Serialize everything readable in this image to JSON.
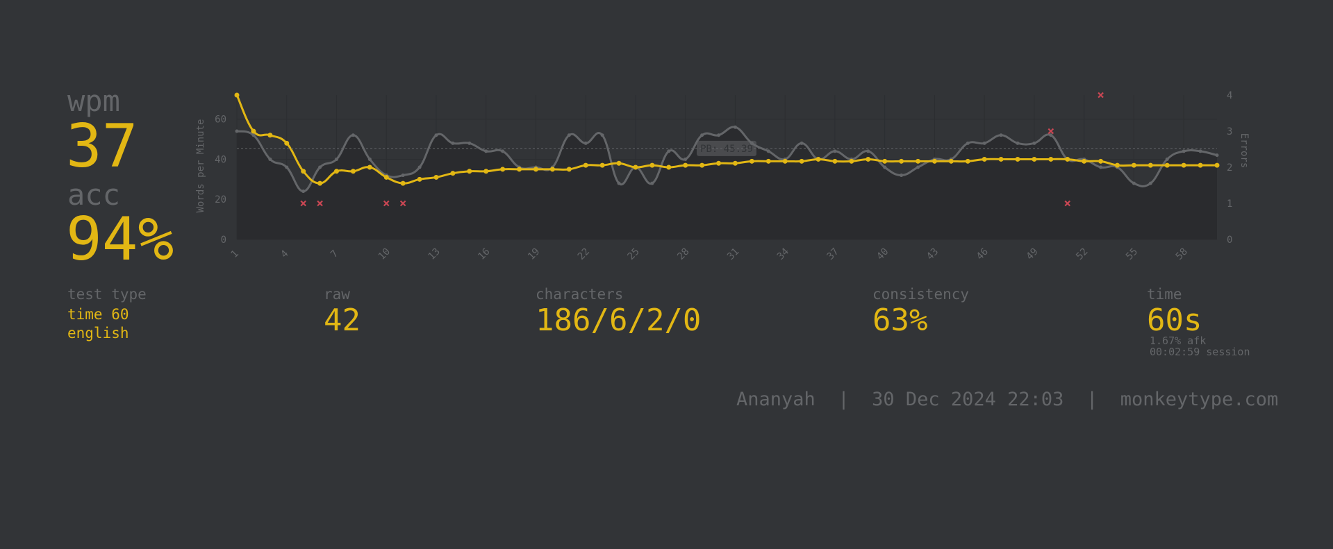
{
  "stats": {
    "wpm_label": "wpm",
    "wpm_value": "37",
    "acc_label": "acc",
    "acc_value": "94%"
  },
  "details": {
    "test_type_label": "test type",
    "test_type_mode": "time 60",
    "test_type_language": "english",
    "raw_label": "raw",
    "raw_value": "42",
    "characters_label": "characters",
    "characters_value": "186/6/2/0",
    "consistency_label": "consistency",
    "consistency_value": "63%",
    "time_label": "time",
    "time_value": "60s",
    "afk": "1.67% afk",
    "session": "00:02:59 session"
  },
  "footer": {
    "user": "Ananyah",
    "date": "30 Dec 2024 22:03",
    "site": "monkeytype.com",
    "separator": "|"
  },
  "colors": {
    "background": "#323437",
    "main": "#e2b714",
    "sub": "#646669",
    "raw_line": "#646669",
    "error": "#ca4754"
  },
  "chart_data": {
    "type": "line",
    "ylabel": "Words per Minute",
    "y2label": "Errors",
    "ylim": [
      0,
      72
    ],
    "y2lim": [
      0,
      4
    ],
    "yticks": [
      0,
      20,
      40,
      60
    ],
    "y2ticks": [
      0,
      1,
      2,
      3,
      4
    ],
    "xticks": [
      1,
      4,
      7,
      10,
      13,
      16,
      19,
      22,
      25,
      28,
      31,
      34,
      37,
      40,
      43,
      46,
      49,
      52,
      55,
      58
    ],
    "pb_label": "PB: 45.39",
    "pb_value": 45.39,
    "x": [
      1,
      2,
      3,
      4,
      5,
      6,
      7,
      8,
      9,
      10,
      11,
      12,
      13,
      14,
      15,
      16,
      17,
      18,
      19,
      20,
      21,
      22,
      23,
      24,
      25,
      26,
      27,
      28,
      29,
      30,
      31,
      32,
      33,
      34,
      35,
      36,
      37,
      38,
      39,
      40,
      41,
      42,
      43,
      44,
      45,
      46,
      47,
      48,
      49,
      50,
      51,
      52,
      53,
      54,
      55,
      56,
      57,
      58,
      59,
      60
    ],
    "series": [
      {
        "role": "wpm",
        "values": [
          72,
          54,
          52,
          48,
          34,
          28,
          34,
          34,
          36,
          31,
          28,
          30,
          31,
          33,
          34,
          34,
          35,
          35,
          35,
          35,
          35,
          37,
          37,
          38,
          36,
          37,
          36,
          37,
          37,
          38,
          38,
          39,
          39,
          39,
          39,
          40,
          39,
          39,
          40,
          39,
          39,
          39,
          39,
          39,
          39,
          40,
          40,
          40,
          40,
          40,
          40,
          39,
          39,
          37,
          37,
          37,
          37,
          37,
          37,
          37
        ]
      },
      {
        "role": "raw",
        "values": [
          54,
          52,
          40,
          36,
          24,
          36,
          40,
          52,
          40,
          32,
          32,
          36,
          52,
          48,
          48,
          44,
          44,
          36,
          36,
          36,
          52,
          48,
          52,
          28,
          36,
          28,
          44,
          40,
          52,
          52,
          56,
          48,
          44,
          40,
          48,
          40,
          44,
          40,
          44,
          36,
          32,
          36,
          40,
          40,
          48,
          48,
          52,
          48,
          48,
          52,
          40,
          40,
          36,
          36,
          28,
          28,
          40,
          44,
          44,
          42
        ]
      }
    ],
    "errors": [
      {
        "x": 5,
        "count": 1
      },
      {
        "x": 6,
        "count": 1
      },
      {
        "x": 10,
        "count": 1
      },
      {
        "x": 11,
        "count": 1
      },
      {
        "x": 50,
        "count": 3
      },
      {
        "x": 51,
        "count": 1
      },
      {
        "x": 53,
        "count": 4
      }
    ]
  }
}
